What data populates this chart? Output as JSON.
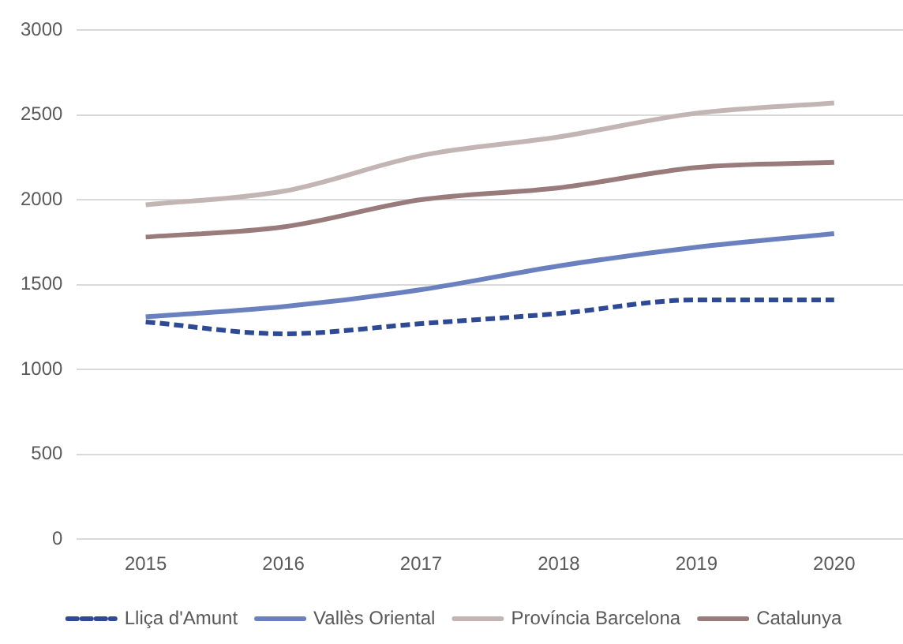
{
  "chart_data": {
    "type": "line",
    "categories": [
      "2015",
      "2016",
      "2017",
      "2018",
      "2019",
      "2020"
    ],
    "series": [
      {
        "name": "Lliça d'Amunt",
        "color": "#2e4a94",
        "line_style": "dashed",
        "values": [
          1280,
          1210,
          1270,
          1330,
          1410,
          1410
        ]
      },
      {
        "name": "Vallès Oriental",
        "color": "#6b80bf",
        "line_style": "solid",
        "values": [
          1310,
          1370,
          1470,
          1610,
          1720,
          1800
        ]
      },
      {
        "name": "Província Barcelona",
        "color": "#c4b5b5",
        "line_style": "solid",
        "values": [
          1970,
          2050,
          2260,
          2370,
          2510,
          2570
        ]
      },
      {
        "name": "Catalunya",
        "color": "#9a7b7b",
        "line_style": "solid",
        "values": [
          1780,
          1840,
          2000,
          2070,
          2190,
          2220
        ]
      }
    ],
    "ylim": [
      0,
      3000
    ],
    "yticks": [
      0,
      500,
      1000,
      1500,
      2000,
      2500,
      3000
    ],
    "grid": "y",
    "legend": "bottom",
    "marker": "none"
  }
}
